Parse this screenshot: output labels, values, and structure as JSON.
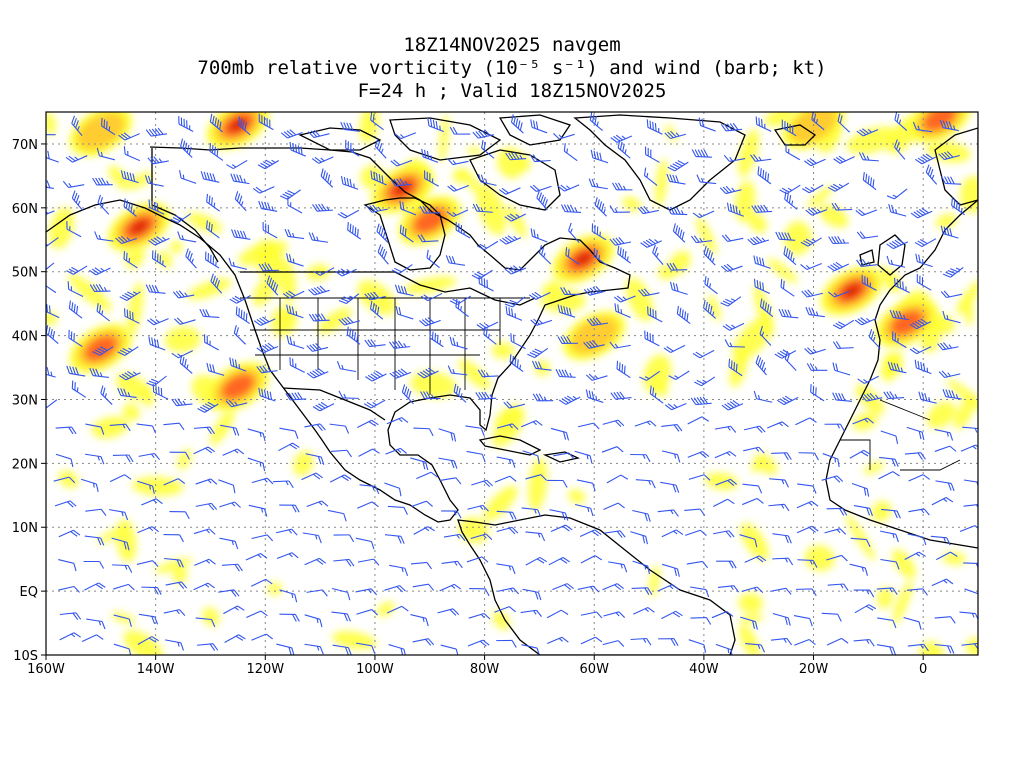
{
  "title": {
    "line1": "18Z14NOV2025 navgem",
    "line2": "700mb relative vorticity (10⁻⁵ s⁻¹) and wind (barb; kt)",
    "line3": "F=24 h ; Valid 18Z15NOV2025"
  },
  "axes": {
    "x_ticks": [
      {
        "lon": -160,
        "label": "160W"
      },
      {
        "lon": -140,
        "label": "140W"
      },
      {
        "lon": -120,
        "label": "120W"
      },
      {
        "lon": -100,
        "label": "100W"
      },
      {
        "lon": -80,
        "label": "80W"
      },
      {
        "lon": -60,
        "label": "60W"
      },
      {
        "lon": -40,
        "label": "40W"
      },
      {
        "lon": -20,
        "label": "20W"
      },
      {
        "lon": 0,
        "label": "0"
      }
    ],
    "y_ticks": [
      {
        "lat": 70,
        "label": "70N"
      },
      {
        "lat": 60,
        "label": "60N"
      },
      {
        "lat": 50,
        "label": "50N"
      },
      {
        "lat": 40,
        "label": "40N"
      },
      {
        "lat": 30,
        "label": "30N"
      },
      {
        "lat": 20,
        "label": "20N"
      },
      {
        "lat": 10,
        "label": "10N"
      },
      {
        "lat": 0,
        "label": "EQ"
      },
      {
        "lat": -10,
        "label": "10S"
      }
    ],
    "lon_range": [
      -160,
      10
    ],
    "lat_range": [
      -10,
      75
    ],
    "grid": true
  },
  "colors": {
    "vort_low": "#ffff33",
    "vort_mid": "#ffcc33",
    "vort_high": "#ff6622",
    "vort_max": "#dd2200",
    "barb": "#3355ee",
    "coast": "#000000",
    "grid": "#888888"
  },
  "vorticity_centers": [
    {
      "lon": -143,
      "lat": 57,
      "level": 4
    },
    {
      "lon": -150,
      "lat": 38,
      "level": 3
    },
    {
      "lon": -125,
      "lat": 73,
      "level": 4
    },
    {
      "lon": -95,
      "lat": 63,
      "level": 4
    },
    {
      "lon": -90,
      "lat": 58,
      "level": 3
    },
    {
      "lon": -125,
      "lat": 32,
      "level": 3
    },
    {
      "lon": -62,
      "lat": 52,
      "level": 4
    },
    {
      "lon": -60,
      "lat": 40,
      "level": 2
    },
    {
      "lon": -13,
      "lat": 47,
      "level": 4
    },
    {
      "lon": -3,
      "lat": 42,
      "level": 3
    },
    {
      "lon": -20,
      "lat": 73,
      "level": 2
    },
    {
      "lon": -150,
      "lat": 72,
      "level": 2
    },
    {
      "lon": 3,
      "lat": 74,
      "level": 3
    }
  ]
}
